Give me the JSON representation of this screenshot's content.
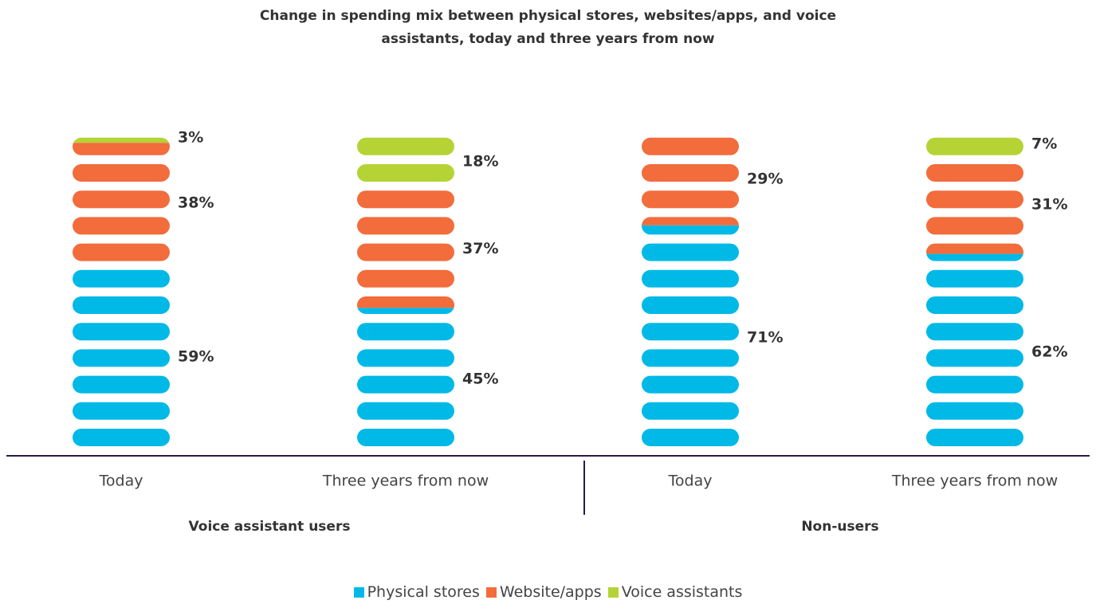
{
  "chart_data": {
    "type": "pill_stack",
    "title": "Change in spending mix between physical stores, websites/apps, and voice assistants, today and three years from now",
    "groups": [
      "Voice assistant users",
      "Non-users"
    ],
    "categories": [
      "Today",
      "Three years from now",
      "Today",
      "Three years from now"
    ],
    "series": [
      {
        "name": "Physical stores",
        "color": "#00b9e7",
        "values": [
          59,
          45,
          71,
          62
        ],
        "value_labels": [
          "59%",
          "45%",
          "71%",
          "62%"
        ]
      },
      {
        "name": "Website/apps",
        "color": "#f26c3c",
        "values": [
          38,
          37,
          29,
          31
        ],
        "value_labels": [
          "38%",
          "37%",
          "29%",
          "31%"
        ]
      },
      {
        "name": "Voice assistants",
        "color": "#b5d334",
        "values": [
          3,
          18,
          null,
          7
        ],
        "value_labels": [
          "3%",
          "18%",
          null,
          "7%"
        ]
      }
    ],
    "ylim": [
      0,
      100
    ],
    "legend": "bottom"
  }
}
